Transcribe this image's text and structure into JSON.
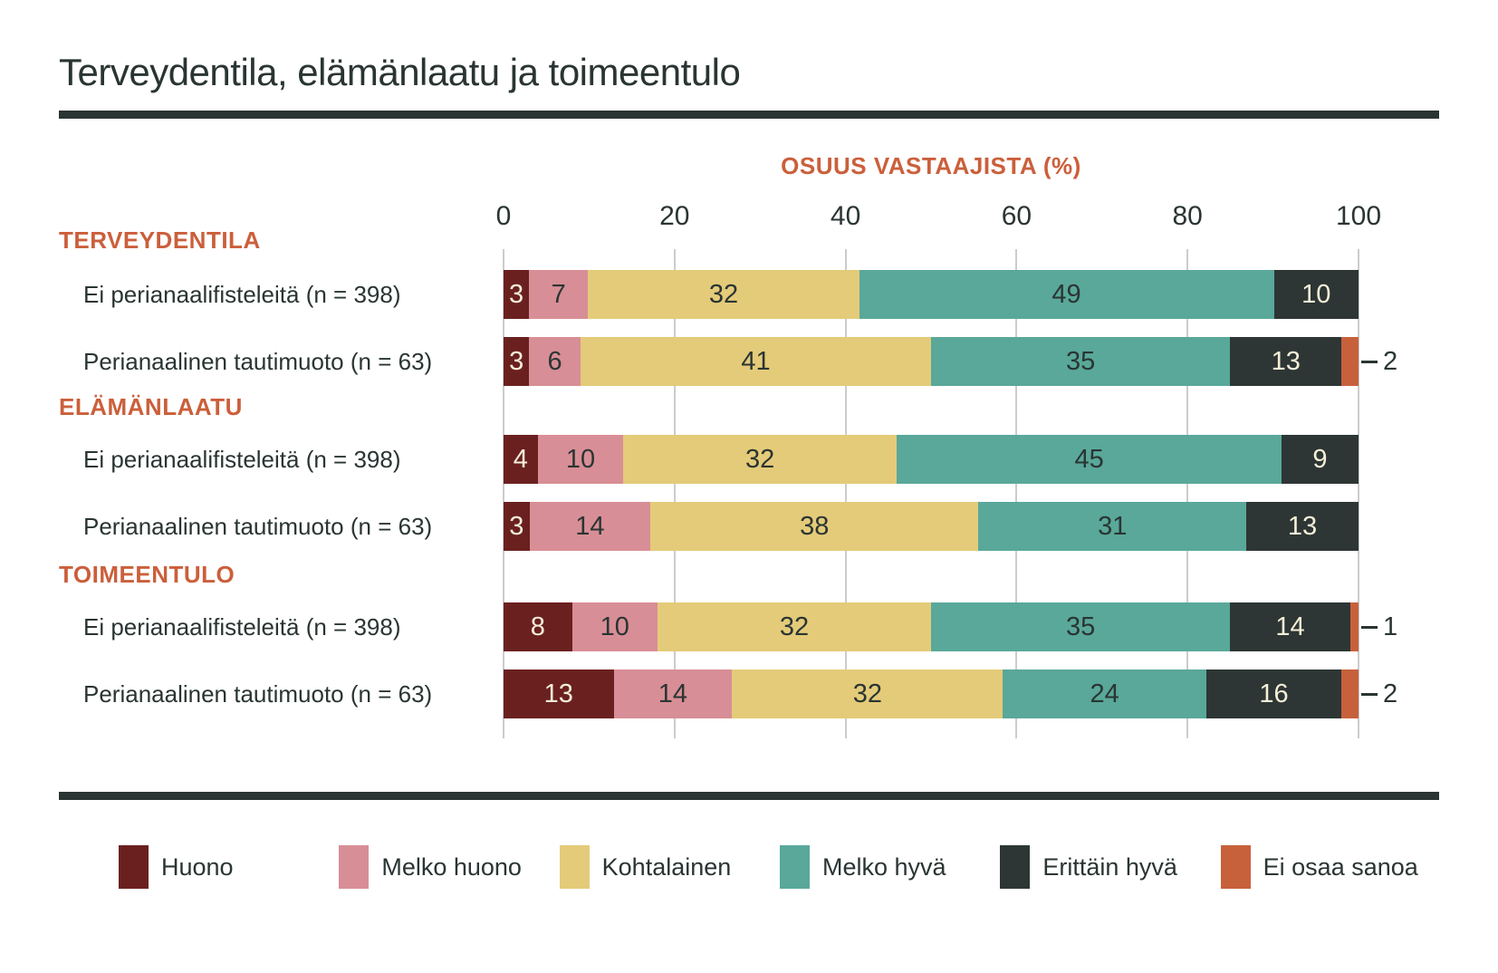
{
  "title": "Terveydentila, elämänlaatu ja toimeentulo",
  "colors": {
    "accent_orange": "#CB5F3B",
    "text_dark": "#2A3533",
    "label_on_dark": "#F5EFD8",
    "gridline": "#CCCCCC",
    "background": "#FFFFFF"
  },
  "chart_data": {
    "type": "bar",
    "variant": "horizontal-stacked",
    "title": "Terveydentila, elämänlaatu ja toimeentulo",
    "axis_title": "OSUUS VASTAAJISTA (%)",
    "xlim": [
      0,
      100
    ],
    "x_ticks": [
      0,
      20,
      40,
      60,
      80,
      100
    ],
    "grid": true,
    "legend_position": "bottom",
    "series_labels": [
      "Huono",
      "Melko huono",
      "Kohtalainen",
      "Melko hyvä",
      "Erittäin hyvä",
      "Ei osaa sanoa"
    ],
    "series_colors": [
      "#6B2020",
      "#D88E96",
      "#E4CB79",
      "#59A89A",
      "#2D3634",
      "#C7613C"
    ],
    "series_value_text_colors": [
      "#F5EFD8",
      "#2A3533",
      "#2A3533",
      "#2A3533",
      "#F5EFD8",
      "#2A3533"
    ],
    "outside_label_series_index": 5,
    "groups": [
      {
        "heading": "TERVEYDENTILA",
        "rows": [
          {
            "label": "Ei perianaalifisteleitä (n = 398)",
            "values": [
              3,
              7,
              32,
              49,
              10,
              0
            ]
          },
          {
            "label": "Perianaalinen tautimuoto (n = 63)",
            "values": [
              3,
              6,
              41,
              35,
              13,
              2
            ]
          }
        ]
      },
      {
        "heading": "ELÄMÄNLAATU",
        "rows": [
          {
            "label": "Ei perianaalifisteleitä (n = 398)",
            "values": [
              4,
              10,
              32,
              45,
              9,
              0
            ]
          },
          {
            "label": "Perianaalinen tautimuoto (n = 63)",
            "values": [
              3,
              14,
              38,
              31,
              13,
              0
            ]
          }
        ]
      },
      {
        "heading": "TOIMEENTULO",
        "rows": [
          {
            "label": "Ei perianaalifisteleitä (n = 398)",
            "values": [
              8,
              10,
              32,
              35,
              14,
              1
            ]
          },
          {
            "label": "Perianaalinen tautimuoto (n = 63)",
            "values": [
              13,
              14,
              32,
              24,
              16,
              2
            ]
          }
        ]
      }
    ]
  }
}
